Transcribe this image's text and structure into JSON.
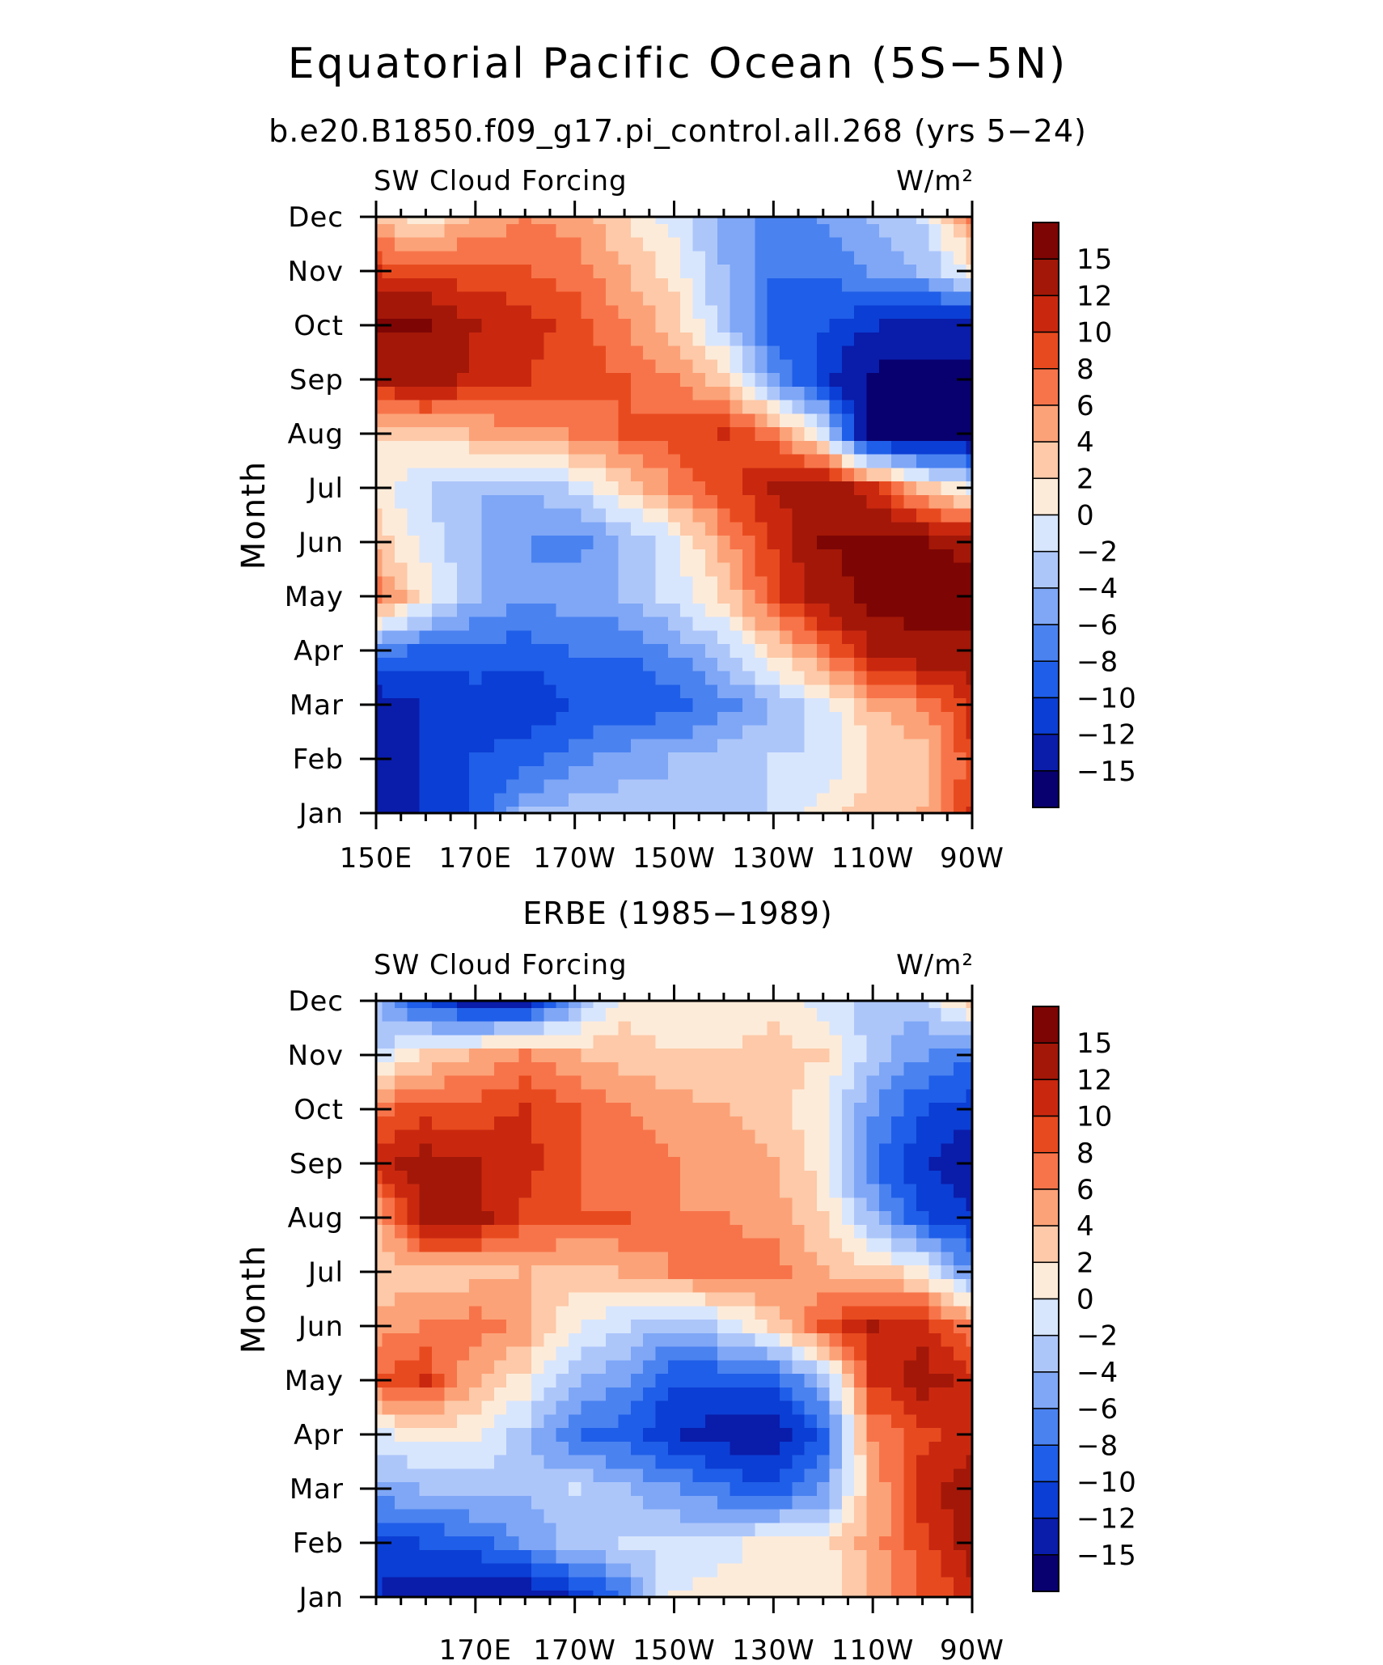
{
  "figure": {
    "title": "Equatorial Pacific Ocean (5S−5N)",
    "subtitle": "b.e20.B1850.f09_g17.pi_control.all.268 (yrs 5−24)"
  },
  "legend_colors": [
    "#08006e",
    "#0a1caa",
    "#0b3ed4",
    "#1f5ee8",
    "#4a82f0",
    "#7fa7f6",
    "#adc6fa",
    "#d8e6fd",
    "#fdebd9",
    "#fdc9a8",
    "#fca278",
    "#f7744a",
    "#e84a1f",
    "#c9280f",
    "#a21708",
    "#7d0504"
  ],
  "chart_data": [
    {
      "type": "heatmap",
      "panel_title": "",
      "left_label": "SW Cloud Forcing",
      "right_label": "W/m²",
      "ylabel": "Month",
      "y_tick_labels": [
        "Jan",
        "Feb",
        "Mar",
        "Apr",
        "May",
        "Jun",
        "Jul",
        "Aug",
        "Sep",
        "Oct",
        "Nov",
        "Dec"
      ],
      "x_tick_labels": [
        "150E",
        "170E",
        "170W",
        "150W",
        "130W",
        "110W",
        "90W"
      ],
      "xlim": [
        150,
        270
      ],
      "x_ticks": [
        150,
        170,
        190,
        210,
        230,
        250,
        270
      ],
      "colorbar_levels": [
        -15,
        -12,
        -10,
        -8,
        -6,
        -4,
        -2,
        0,
        2,
        4,
        6,
        8,
        10,
        12,
        15
      ],
      "colorbar_labels": [
        "15",
        "12",
        "10",
        "8",
        "6",
        "4",
        "2",
        "0",
        "−2",
        "−4",
        "−6",
        "−8",
        "−10",
        "−12",
        "−15"
      ],
      "x": [
        150,
        160,
        170,
        180,
        190,
        200,
        210,
        220,
        230,
        240,
        250,
        260,
        270
      ],
      "y": [
        "Jan",
        "Feb",
        "Mar",
        "Apr",
        "May",
        "Jun",
        "Jul",
        "Aug",
        "Sep",
        "Oct",
        "Nov",
        "Dec"
      ],
      "values": [
        [
          -15,
          -12,
          -10,
          -4,
          -3,
          -3,
          -4,
          -3,
          -2,
          1,
          3,
          4,
          10
        ],
        [
          -14,
          -12,
          -10,
          -9,
          -7,
          -5,
          -4,
          -3,
          -2,
          -2,
          2,
          3,
          9
        ],
        [
          -14,
          -12,
          -11,
          -12,
          -10,
          -10,
          -9,
          -7,
          -4,
          -1,
          4,
          6,
          11
        ],
        [
          -7,
          -9,
          -9,
          -9,
          -8,
          -8,
          -6,
          -3,
          2,
          7,
          12,
          14,
          14
        ],
        [
          7,
          1,
          -4,
          -6,
          -5,
          -4,
          -1,
          2,
          9,
          13,
          16,
          17,
          17
        ],
        [
          3,
          -1,
          -4,
          -6,
          -7,
          -4,
          -1,
          5,
          10,
          15,
          16,
          15,
          14
        ],
        [
          1,
          -2,
          -4,
          -4,
          -2,
          2,
          6,
          9,
          12,
          14,
          10,
          3,
          -1
        ],
        [
          2,
          2,
          4,
          5,
          6,
          8,
          9,
          10,
          7,
          -1,
          -16,
          -16,
          -16
        ],
        [
          12,
          14,
          11,
          10,
          9,
          8,
          6,
          3,
          -6,
          -11,
          -16,
          -16,
          -16
        ],
        [
          15,
          15,
          12,
          11,
          9,
          6,
          3,
          -3,
          -9,
          -10,
          -12,
          -14,
          -14
        ],
        [
          10,
          9,
          9,
          8,
          7,
          4,
          1,
          -4,
          -8,
          -8,
          -6,
          -4,
          1
        ],
        [
          3,
          1,
          4,
          6,
          5,
          2,
          -1,
          -5,
          -7,
          -6,
          -4,
          -2,
          6
        ]
      ]
    },
    {
      "type": "heatmap",
      "panel_title": "ERBE (1985−1989)",
      "left_label": "SW Cloud Forcing",
      "right_label": "W/m²",
      "ylabel": "Month",
      "y_tick_labels": [
        "Jan",
        "Feb",
        "Mar",
        "Apr",
        "May",
        "Jun",
        "Jul",
        "Aug",
        "Sep",
        "Oct",
        "Nov",
        "Dec"
      ],
      "x_tick_labels": [
        "170E",
        "170W",
        "150W",
        "130W",
        "110W",
        "90W"
      ],
      "xlim": [
        150,
        270
      ],
      "x_ticks": [
        170,
        190,
        210,
        230,
        250,
        270
      ],
      "colorbar_levels": [
        -15,
        -12,
        -10,
        -8,
        -6,
        -4,
        -2,
        0,
        2,
        4,
        6,
        8,
        10,
        12,
        15
      ],
      "colorbar_labels": [
        "15",
        "12",
        "10",
        "8",
        "6",
        "4",
        "2",
        "0",
        "−2",
        "−4",
        "−6",
        "−8",
        "−10",
        "−12",
        "−15"
      ],
      "x": [
        150,
        160,
        170,
        180,
        190,
        200,
        210,
        220,
        230,
        240,
        250,
        260,
        270
      ],
      "y": [
        "Jan",
        "Feb",
        "Mar",
        "Apr",
        "May",
        "Jun",
        "Jul",
        "Aug",
        "Sep",
        "Oct",
        "Nov",
        "Dec"
      ],
      "values": [
        [
          -12,
          -14,
          -14,
          -15,
          -12,
          -8,
          0,
          1,
          0,
          1,
          4,
          8,
          11
        ],
        [
          -11,
          -10,
          -9,
          -6,
          -3,
          -2,
          -2,
          -1,
          1,
          1,
          5,
          9,
          13
        ],
        [
          -5,
          -4,
          -3,
          -4,
          -2,
          -4,
          -6,
          -8,
          -10,
          -6,
          4,
          11,
          14
        ],
        [
          -1,
          1,
          0,
          -3,
          -8,
          -9,
          -12,
          -13,
          -14,
          -9,
          6,
          9,
          11
        ],
        [
          8,
          10,
          4,
          1,
          -4,
          -6,
          -10,
          -10,
          -9,
          -4,
          10,
          13,
          11
        ],
        [
          5,
          6,
          7,
          5,
          0,
          -2,
          -4,
          -2,
          2,
          8,
          12,
          11,
          6
        ],
        [
          2,
          3,
          3,
          4,
          3,
          4,
          6,
          7,
          7,
          4,
          3,
          1,
          -6
        ],
        [
          4,
          13,
          13,
          9,
          8,
          8,
          6,
          6,
          5,
          2,
          -4,
          -10,
          -12
        ],
        [
          11,
          13,
          12,
          11,
          8,
          7,
          6,
          5,
          4,
          1,
          -8,
          -12,
          -14
        ],
        [
          7,
          9,
          9,
          10,
          8,
          6,
          5,
          4,
          3,
          0,
          -6,
          -10,
          -11
        ],
        [
          -2,
          2,
          4,
          6,
          4,
          3,
          2,
          2,
          3,
          2,
          -3,
          -6,
          -8
        ],
        [
          -4,
          -10,
          -13,
          -13,
          -5,
          1,
          1,
          1,
          1,
          -1,
          -3,
          -3,
          3
        ]
      ]
    }
  ]
}
